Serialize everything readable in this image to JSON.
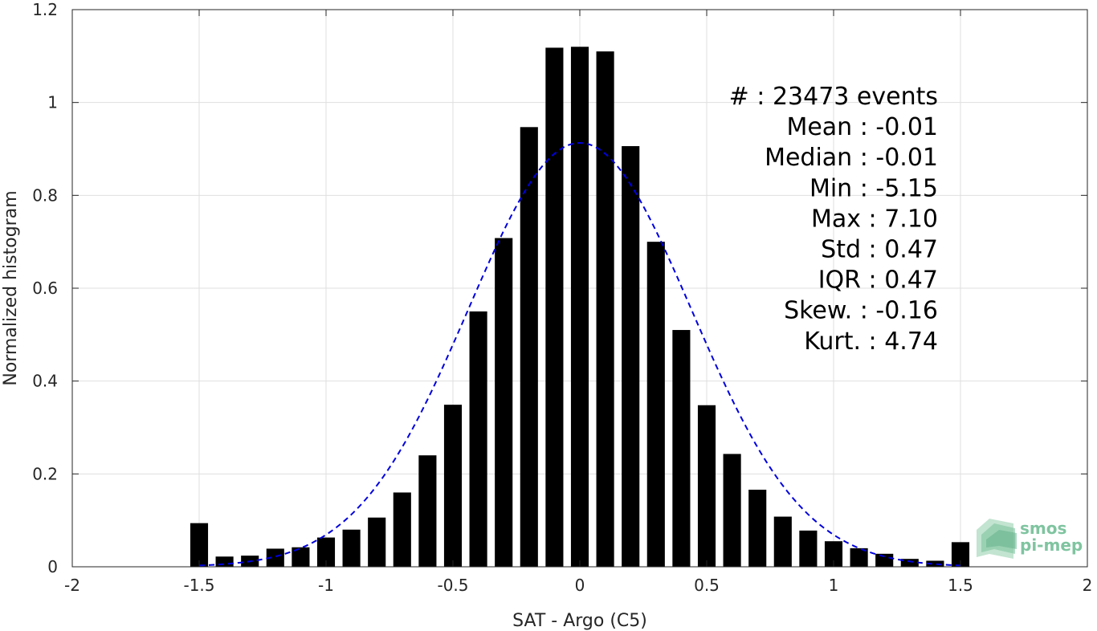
{
  "chart_data": {
    "type": "bar",
    "xlabel": "SAT - Argo (C5)",
    "ylabel": "Normalized histogram",
    "xlim": [
      -2,
      2
    ],
    "ylim": [
      0,
      1.2
    ],
    "xticks": [
      -2,
      -1.5,
      -1,
      -0.5,
      0,
      0.5,
      1,
      1.5,
      2
    ],
    "xtick_labels": [
      "-2",
      "-1.5",
      "-1",
      "-0.5",
      "0",
      "0.5",
      "1",
      "1.5",
      "2"
    ],
    "yticks": [
      0,
      0.2,
      0.4,
      0.6,
      0.8,
      1,
      1.2
    ],
    "ytick_labels": [
      "0",
      "0.2",
      "0.4",
      "0.6",
      "0.8",
      "1",
      "1.2"
    ],
    "grid": true,
    "bar_width": 0.07,
    "x": [
      -1.5,
      -1.4,
      -1.3,
      -1.2,
      -1.1,
      -1.0,
      -0.9,
      -0.8,
      -0.7,
      -0.6,
      -0.5,
      -0.4,
      -0.3,
      -0.2,
      -0.1,
      0.0,
      0.1,
      0.2,
      0.3,
      0.4,
      0.5,
      0.6,
      0.7,
      0.8,
      0.9,
      1.0,
      1.1,
      1.2,
      1.3,
      1.4,
      1.5
    ],
    "values": [
      0.094,
      0.022,
      0.024,
      0.039,
      0.042,
      0.063,
      0.08,
      0.106,
      0.16,
      0.24,
      0.349,
      0.55,
      0.708,
      0.947,
      1.118,
      1.12,
      1.11,
      0.906,
      0.7,
      0.51,
      0.348,
      0.243,
      0.166,
      0.108,
      0.078,
      0.055,
      0.04,
      0.028,
      0.017,
      0.013,
      0.053
    ],
    "fit_curve": {
      "style": "dashed",
      "color": "#0000dd",
      "mean": 0.0,
      "std": 0.44,
      "peak": 0.913,
      "x_range": [
        -1.5,
        1.5
      ]
    },
    "stats": [
      {
        "label": "#  ",
        "value": ": 23473 events"
      },
      {
        "label": "Mean ",
        "value": ": -0.01"
      },
      {
        "label": "Median ",
        "value": ": -0.01"
      },
      {
        "label": "Min ",
        "value": ": -5.15"
      },
      {
        "label": "Max ",
        "value": ": 7.10"
      },
      {
        "label": "Std ",
        "value": ": 0.47"
      },
      {
        "label": "IQR ",
        "value": ": 0.47"
      },
      {
        "label": "Skew. ",
        "value": ": -0.16"
      },
      {
        "label": "Kurt. ",
        "value": ": 4.74"
      }
    ],
    "bar_color": "#000000"
  },
  "logo": {
    "line1": "smos",
    "line2": "pi-mep"
  }
}
